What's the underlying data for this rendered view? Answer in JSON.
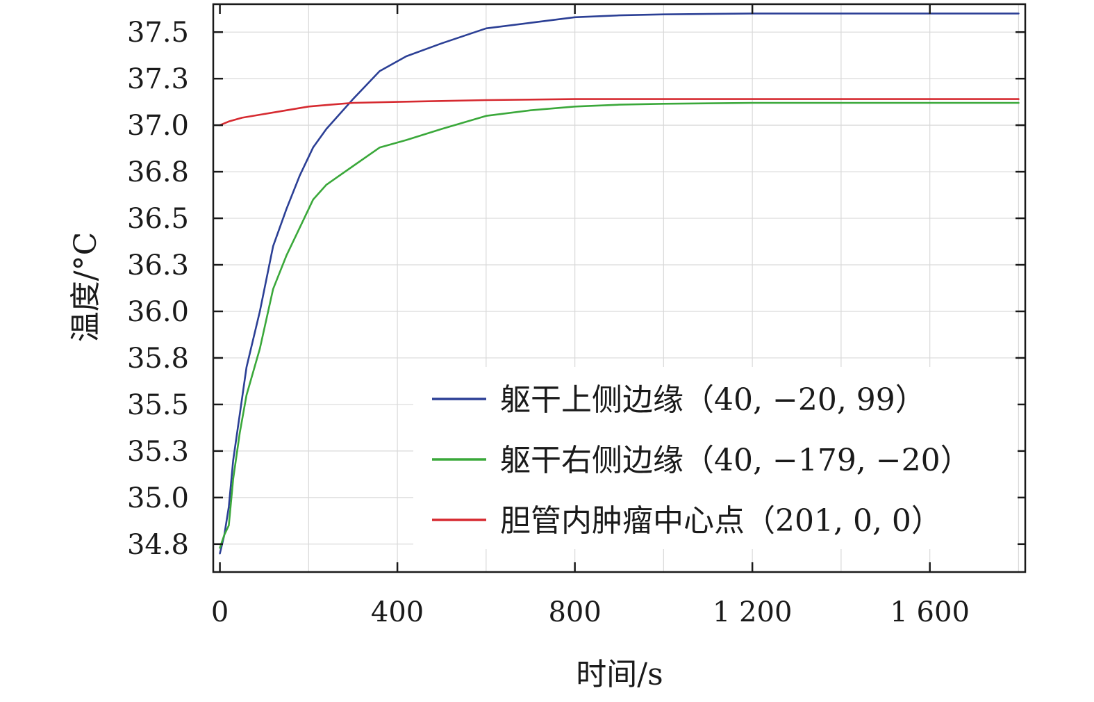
{
  "chart_data": {
    "type": "line",
    "title": "",
    "xlabel": "时间/s",
    "ylabel": "温度/°C",
    "xlim": [
      -15,
      1815
    ],
    "ylim": [
      34.6,
      37.65
    ],
    "x_ticks": [
      {
        "value": 0,
        "label": "0"
      },
      {
        "value": 400,
        "label": "400"
      },
      {
        "value": 800,
        "label": "800"
      },
      {
        "value": 1200,
        "label": "1 200"
      },
      {
        "value": 1600,
        "label": "1 600"
      }
    ],
    "x_grid": [
      200,
      400,
      600,
      800,
      1000,
      1200,
      1400,
      1600,
      1800
    ],
    "y_ticks": [
      {
        "value": 34.75,
        "label": "34.8"
      },
      {
        "value": 35.0,
        "label": "35.0"
      },
      {
        "value": 35.25,
        "label": "35.3"
      },
      {
        "value": 35.5,
        "label": "35.5"
      },
      {
        "value": 35.75,
        "label": "35.8"
      },
      {
        "value": 36.0,
        "label": "36.0"
      },
      {
        "value": 36.25,
        "label": "36.3"
      },
      {
        "value": 36.5,
        "label": "36.5"
      },
      {
        "value": 36.75,
        "label": "36.8"
      },
      {
        "value": 37.0,
        "label": "37.0"
      },
      {
        "value": 37.25,
        "label": "37.3"
      },
      {
        "value": 37.5,
        "label": "37.5"
      }
    ],
    "grid": true,
    "legend": "bottom-right",
    "series": [
      {
        "name": "躯干上侧边缘（40, −20, 99）",
        "color": "#2b3f95",
        "x": [
          0,
          10,
          20,
          30,
          45,
          60,
          90,
          120,
          150,
          180,
          210,
          240,
          300,
          360,
          420,
          500,
          600,
          700,
          800,
          900,
          1000,
          1200,
          1400,
          1600,
          1800
        ],
        "y": [
          34.7,
          34.8,
          34.95,
          35.2,
          35.45,
          35.7,
          36.0,
          36.35,
          36.55,
          36.73,
          36.88,
          36.98,
          37.14,
          37.29,
          37.37,
          37.44,
          37.52,
          37.55,
          37.58,
          37.59,
          37.595,
          37.6,
          37.6,
          37.6,
          37.6
        ]
      },
      {
        "name": "躯干右侧边缘（40, −179, −20）",
        "color": "#3aa83a",
        "x": [
          0,
          10,
          20,
          30,
          45,
          60,
          90,
          120,
          150,
          180,
          210,
          240,
          300,
          360,
          420,
          500,
          600,
          700,
          800,
          900,
          1000,
          1200,
          1400,
          1600,
          1800
        ],
        "y": [
          34.73,
          34.8,
          34.85,
          35.1,
          35.35,
          35.55,
          35.8,
          36.12,
          36.3,
          36.45,
          36.6,
          36.68,
          36.78,
          36.88,
          36.92,
          36.98,
          37.05,
          37.08,
          37.1,
          37.11,
          37.115,
          37.12,
          37.12,
          37.12,
          37.12
        ]
      },
      {
        "name": "胆管内肿瘤中心点（201, 0, 0）",
        "color": "#d62a30",
        "x": [
          0,
          20,
          50,
          100,
          150,
          200,
          250,
          300,
          400,
          500,
          600,
          800,
          1000,
          1200,
          1400,
          1600,
          1800
        ],
        "y": [
          37.0,
          37.02,
          37.04,
          37.06,
          37.08,
          37.1,
          37.11,
          37.12,
          37.125,
          37.13,
          37.135,
          37.14,
          37.14,
          37.14,
          37.14,
          37.14,
          37.14
        ]
      }
    ]
  }
}
